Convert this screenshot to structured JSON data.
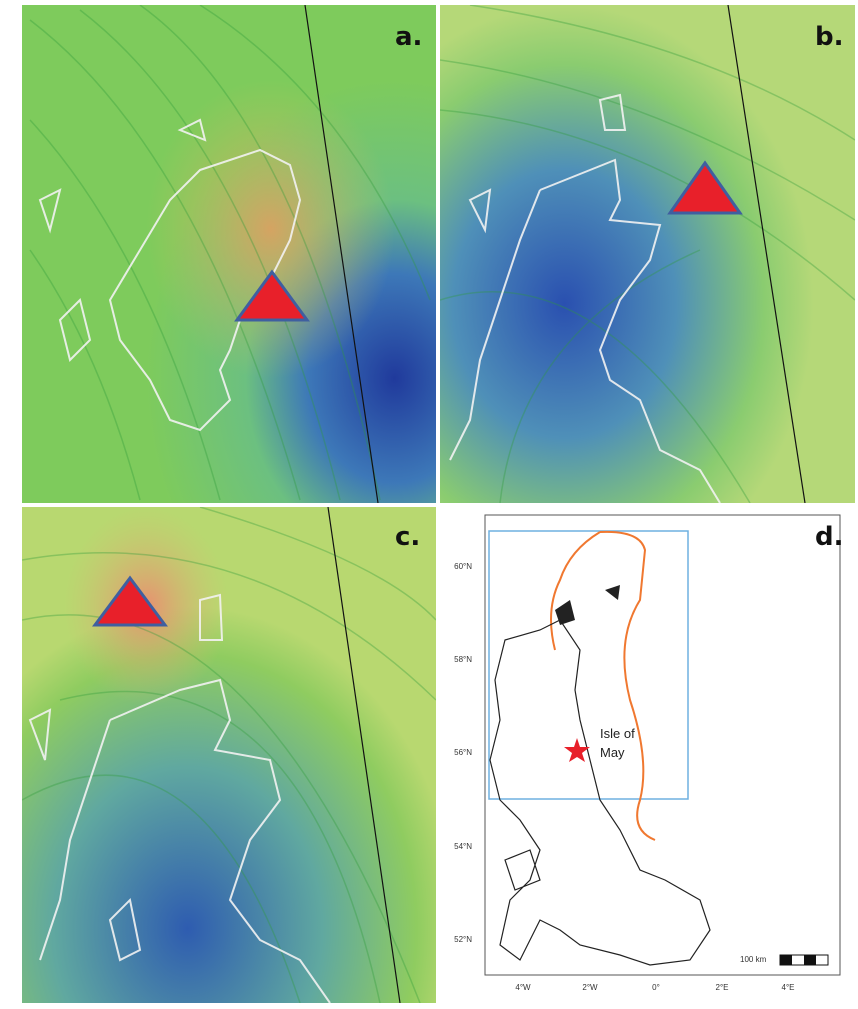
{
  "panels": [
    {
      "label": "a."
    },
    {
      "label": "b."
    },
    {
      "label": "c."
    },
    {
      "label": "d."
    }
  ],
  "map": {
    "lat_labels": [
      "60°N",
      "58°N",
      "56°N",
      "54°N",
      "52°N"
    ],
    "lon_labels": [
      "4°W",
      "2°W",
      "0°",
      "2°E",
      "4°E"
    ],
    "site_label": [
      "Isle of",
      "May"
    ],
    "scale_label": "100 km"
  }
}
